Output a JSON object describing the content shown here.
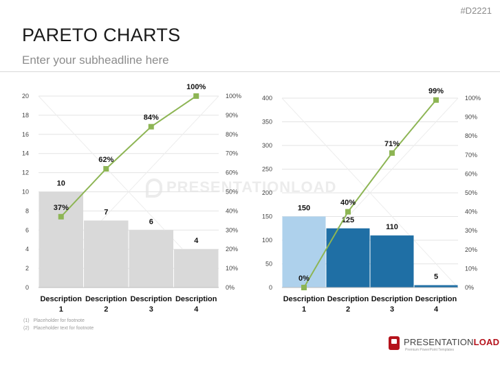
{
  "header": {
    "slide_code": "#D2221",
    "title": "PARETO CHARTS",
    "subtitle": "Enter your subheadline here"
  },
  "watermark": {
    "text": "PRESENTATIONLOAD"
  },
  "footnotes": [
    {
      "num": "(1)",
      "text": "Placeholder for footnote"
    },
    {
      "num": "(2)",
      "text": "Placeholder text for footnote"
    }
  ],
  "brand": {
    "name_light": "PRESENTATION",
    "name_bold": "LOAD",
    "tagline": "Premium PowerPoint Templates"
  },
  "colors": {
    "grid": "#e3e3e3",
    "axis_text": "#444444",
    "line": "#8db554",
    "marker": "#8db554",
    "bar_gray": "#d9d9d9",
    "bar_light_blue": "#aed1ec",
    "bar_blue": "#1f6fa5"
  },
  "chart_data": [
    {
      "type": "bar",
      "categories": [
        "Description 1",
        "Description 2",
        "Description 3",
        "Description 4"
      ],
      "category_lines": [
        [
          "Description",
          "1"
        ],
        [
          "Description",
          "2"
        ],
        [
          "Description",
          "3"
        ],
        [
          "Description",
          "4"
        ]
      ],
      "values": [
        10,
        7,
        6,
        4
      ],
      "value_labels": [
        "10",
        "7",
        "6",
        "4"
      ],
      "bar_colors": [
        "#d9d9d9",
        "#d9d9d9",
        "#d9d9d9",
        "#d9d9d9"
      ],
      "ylim": [
        0,
        20
      ],
      "yticks": [
        "0",
        "2",
        "4",
        "6",
        "8",
        "10",
        "12",
        "14",
        "16",
        "18",
        "20"
      ],
      "cumulative_percent": [
        37,
        62,
        84,
        100
      ],
      "cumulative_labels": [
        "37%",
        "62%",
        "84%",
        "100%"
      ],
      "y2lim": [
        0,
        100
      ],
      "y2ticks": [
        "0%",
        "10%",
        "20%",
        "30%",
        "40%",
        "50%",
        "60%",
        "70%",
        "80%",
        "90%",
        "100%"
      ],
      "grid": true,
      "legend": "none"
    },
    {
      "type": "bar",
      "categories": [
        "Description 1",
        "Description 2",
        "Description 3",
        "Description 4"
      ],
      "category_lines": [
        [
          "Description",
          "1"
        ],
        [
          "Description",
          "2"
        ],
        [
          "Description",
          "3"
        ],
        [
          "Description",
          "4"
        ]
      ],
      "values": [
        150,
        125,
        110,
        5
      ],
      "value_labels": [
        "150",
        "125",
        "110",
        "5"
      ],
      "bar_colors": [
        "#aed1ec",
        "#1f6fa5",
        "#1f6fa5",
        "#1f6fa5"
      ],
      "ylim": [
        0,
        400
      ],
      "yticks": [
        "0",
        "50",
        "100",
        "150",
        "200",
        "250",
        "300",
        "350",
        "400"
      ],
      "cumulative_percent": [
        0,
        40,
        71,
        99
      ],
      "cumulative_labels": [
        "0%",
        "40%",
        "71%",
        "99%"
      ],
      "y2lim": [
        0,
        100
      ],
      "y2ticks": [
        "0%",
        "10%",
        "20%",
        "30%",
        "40%",
        "50%",
        "60%",
        "70%",
        "80%",
        "90%",
        "100%"
      ],
      "grid": true,
      "legend": "none"
    }
  ]
}
